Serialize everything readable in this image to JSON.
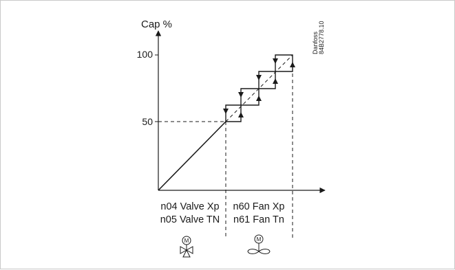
{
  "diagram": {
    "y_axis_label": "Cap %",
    "y_ticks": [
      "100",
      "50"
    ],
    "brand_line1": "Danfoss",
    "brand_line2": "84B2778.10",
    "valve_zone": {
      "line1": "n04 Valve Xp",
      "line2": "n05 Valve TN",
      "icon_letter": "M",
      "icon": "motorized-three-way-valve-icon"
    },
    "fan_zone": {
      "line1": "n60 Fan Xp",
      "line2": "n61 Fan Tn",
      "icon_letter": "M",
      "icon": "motorized-fan-icon"
    },
    "colors": {
      "line": "#1a1a1a",
      "frame": "#c8c8c8"
    }
  }
}
